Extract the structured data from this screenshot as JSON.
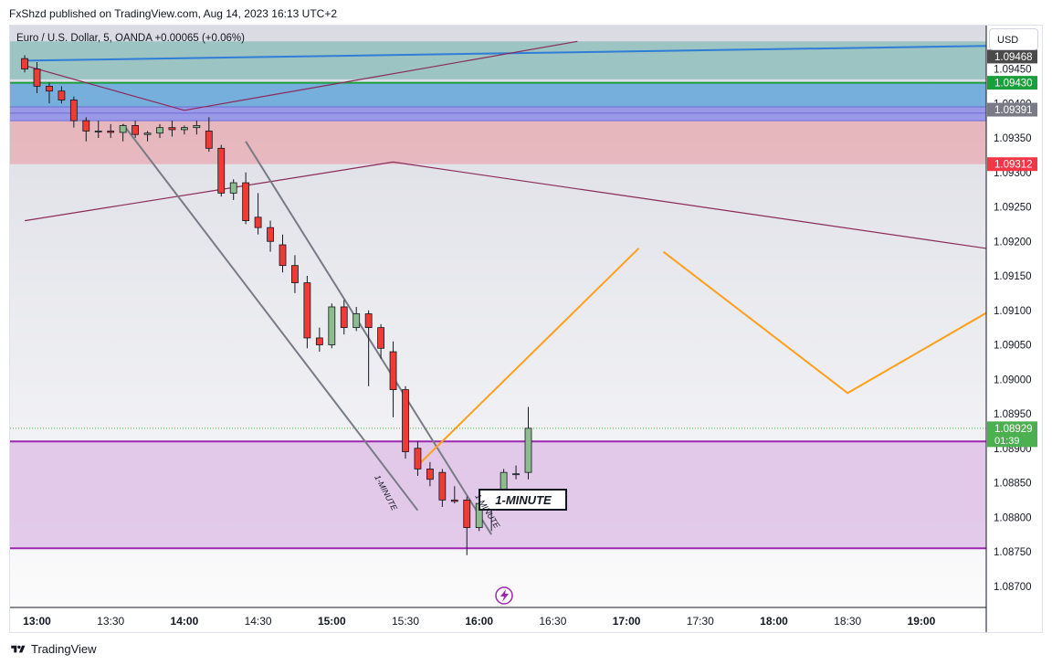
{
  "header": {
    "published_line": "FxShzd published on TradingView.com, Aug 14, 2023 16:13 UTC+2",
    "symbol_line": "Euro / U.S. Dollar, 5, OANDA  +0.00065 (+0.06%)",
    "currency_button": "USD"
  },
  "footer": {
    "brand": "TradingView"
  },
  "colors": {
    "up": "#8fbc8f",
    "down": "#ef3b36",
    "wick": "#131722",
    "zone_teal": "#8fbfbd",
    "zone_blue": "#5ba3d9",
    "zone_purple": "#8e8ce8",
    "zone_red": "#e8aab0",
    "zone_magenta": "#e0c4e8",
    "line_blue": "#2f7dd6",
    "line_maroon": "#8b2a5a",
    "line_orange": "#ff9f1a",
    "line_gray": "#787b86",
    "line_green": "#1b9e3c",
    "line_violet": "#9c27b0"
  },
  "chart_data": {
    "type": "candlestick",
    "symbol": "EURUSD",
    "timeframe": "5",
    "x_ticks": [
      "13:00",
      "13:30",
      "14:00",
      "14:30",
      "15:00",
      "15:30",
      "16:00",
      "16:30",
      "17:00",
      "17:30",
      "18:00",
      "18:30",
      "19:00"
    ],
    "x_ticks_bold": [
      "13:00",
      "14:00",
      "15:00",
      "16:00",
      "17:00",
      "18:00",
      "19:00"
    ],
    "y_ticks": [
      "1.09450",
      "1.09400",
      "1.09350",
      "1.09300",
      "1.09250",
      "1.09200",
      "1.09150",
      "1.09100",
      "1.09050",
      "1.09000",
      "1.08950",
      "1.08900",
      "1.08850",
      "1.08800",
      "1.08750",
      "1.08700"
    ],
    "ylim": [
      1.0865,
      1.0949
    ],
    "candles": [
      {
        "t": "12:55",
        "o": 1.09465,
        "h": 1.0947,
        "l": 1.09445,
        "c": 1.0945
      },
      {
        "t": "13:00",
        "o": 1.0945,
        "h": 1.0946,
        "l": 1.09415,
        "c": 1.09425
      },
      {
        "t": "13:05",
        "o": 1.09425,
        "h": 1.0943,
        "l": 1.094,
        "c": 1.09418
      },
      {
        "t": "13:10",
        "o": 1.09418,
        "h": 1.09425,
        "l": 1.094,
        "c": 1.09405
      },
      {
        "t": "13:15",
        "o": 1.09405,
        "h": 1.0941,
        "l": 1.09365,
        "c": 1.09375
      },
      {
        "t": "13:20",
        "o": 1.09375,
        "h": 1.0938,
        "l": 1.09345,
        "c": 1.0936
      },
      {
        "t": "13:25",
        "o": 1.0936,
        "h": 1.09375,
        "l": 1.0935,
        "c": 1.0936
      },
      {
        "t": "13:30",
        "o": 1.0936,
        "h": 1.0937,
        "l": 1.0935,
        "c": 1.09358
      },
      {
        "t": "13:35",
        "o": 1.09358,
        "h": 1.0937,
        "l": 1.09345,
        "c": 1.09368
      },
      {
        "t": "13:40",
        "o": 1.09368,
        "h": 1.09375,
        "l": 1.0935,
        "c": 1.09355
      },
      {
        "t": "13:45",
        "o": 1.09355,
        "h": 1.0936,
        "l": 1.09345,
        "c": 1.09357
      },
      {
        "t": "13:50",
        "o": 1.09357,
        "h": 1.0937,
        "l": 1.0935,
        "c": 1.09365
      },
      {
        "t": "13:55",
        "o": 1.09365,
        "h": 1.09375,
        "l": 1.09352,
        "c": 1.09362
      },
      {
        "t": "14:00",
        "o": 1.09362,
        "h": 1.09368,
        "l": 1.09355,
        "c": 1.09365
      },
      {
        "t": "14:05",
        "o": 1.09365,
        "h": 1.09375,
        "l": 1.09355,
        "c": 1.09368
      },
      {
        "t": "14:10",
        "o": 1.0936,
        "h": 1.0938,
        "l": 1.0933,
        "c": 1.09335
      },
      {
        "t": "14:15",
        "o": 1.09335,
        "h": 1.0934,
        "l": 1.09265,
        "c": 1.0927
      },
      {
        "t": "14:20",
        "o": 1.0927,
        "h": 1.0929,
        "l": 1.0926,
        "c": 1.09285
      },
      {
        "t": "14:25",
        "o": 1.09285,
        "h": 1.093,
        "l": 1.09225,
        "c": 1.0923
      },
      {
        "t": "14:30",
        "o": 1.09235,
        "h": 1.0927,
        "l": 1.0921,
        "c": 1.0922
      },
      {
        "t": "14:35",
        "o": 1.0922,
        "h": 1.0923,
        "l": 1.09185,
        "c": 1.092
      },
      {
        "t": "14:40",
        "o": 1.09195,
        "h": 1.0921,
        "l": 1.09155,
        "c": 1.09165
      },
      {
        "t": "14:45",
        "o": 1.09165,
        "h": 1.0918,
        "l": 1.09125,
        "c": 1.0914
      },
      {
        "t": "14:50",
        "o": 1.0914,
        "h": 1.0915,
        "l": 1.09045,
        "c": 1.0906
      },
      {
        "t": "14:55",
        "o": 1.0906,
        "h": 1.09075,
        "l": 1.0904,
        "c": 1.0905
      },
      {
        "t": "15:00",
        "o": 1.0905,
        "h": 1.0911,
        "l": 1.09045,
        "c": 1.09105
      },
      {
        "t": "15:05",
        "o": 1.09105,
        "h": 1.09115,
        "l": 1.09065,
        "c": 1.09075
      },
      {
        "t": "15:10",
        "o": 1.09075,
        "h": 1.09105,
        "l": 1.0907,
        "c": 1.09095
      },
      {
        "t": "15:15",
        "o": 1.09095,
        "h": 1.091,
        "l": 1.0899,
        "c": 1.09075
      },
      {
        "t": "15:20",
        "o": 1.09075,
        "h": 1.0908,
        "l": 1.0903,
        "c": 1.09045
      },
      {
        "t": "15:25",
        "o": 1.0904,
        "h": 1.09055,
        "l": 1.08945,
        "c": 1.08985
      },
      {
        "t": "15:30",
        "o": 1.08985,
        "h": 1.0899,
        "l": 1.08885,
        "c": 1.08895
      },
      {
        "t": "15:35",
        "o": 1.089,
        "h": 1.0891,
        "l": 1.0886,
        "c": 1.0887
      },
      {
        "t": "15:40",
        "o": 1.0887,
        "h": 1.0888,
        "l": 1.08845,
        "c": 1.08855
      },
      {
        "t": "15:45",
        "o": 1.08865,
        "h": 1.0887,
        "l": 1.08815,
        "c": 1.08825
      },
      {
        "t": "15:50",
        "o": 1.08825,
        "h": 1.08845,
        "l": 1.0882,
        "c": 1.08823
      },
      {
        "t": "15:55",
        "o": 1.08825,
        "h": 1.0883,
        "l": 1.08745,
        "c": 1.08785
      },
      {
        "t": "16:00",
        "o": 1.08785,
        "h": 1.0884,
        "l": 1.0878,
        "c": 1.0882
      },
      {
        "t": "16:05",
        "o": 1.0882,
        "h": 1.08825,
        "l": 1.0878,
        "c": 1.08822
      },
      {
        "t": "16:10",
        "o": 1.08825,
        "h": 1.0887,
        "l": 1.0882,
        "c": 1.08865
      },
      {
        "t": "16:15",
        "o": 1.08862,
        "h": 1.08875,
        "l": 1.08855,
        "c": 1.08863
      },
      {
        "t": "16:20",
        "o": 1.08865,
        "h": 1.0896,
        "l": 1.08855,
        "c": 1.08929
      }
    ],
    "zones": [
      {
        "name": "teal",
        "y1": 1.0949,
        "y2": 1.09435
      },
      {
        "name": "blue",
        "y1": 1.0943,
        "y2": 1.09395
      },
      {
        "name": "purple",
        "y1": 1.09395,
        "y2": 1.09375
      },
      {
        "name": "red",
        "y1": 1.09375,
        "y2": 1.09312
      },
      {
        "name": "magenta",
        "y1": 1.0891,
        "y2": 1.08755
      }
    ],
    "horizontal_lines": [
      {
        "price": 1.0943,
        "color": "green"
      },
      {
        "price": 1.0891,
        "color": "violet"
      },
      {
        "price": 1.08755,
        "color": "violet"
      }
    ],
    "trend_lines": [
      {
        "color": "blue",
        "points": [
          [
            "12:55",
            1.09462
          ],
          [
            "19:55",
            1.09485
          ]
        ]
      },
      {
        "color": "maroon",
        "points": [
          [
            "12:55",
            1.09455
          ],
          [
            "14:00",
            1.0939
          ],
          [
            "16:40",
            1.0949
          ]
        ]
      },
      {
        "color": "maroon",
        "points": [
          [
            "12:55",
            1.0923
          ],
          [
            "15:25",
            1.09315
          ],
          [
            "19:55",
            1.09175
          ]
        ]
      },
      {
        "color": "gray",
        "points": [
          [
            "13:35",
            1.0937
          ],
          [
            "15:35",
            1.0881
          ]
        ]
      },
      {
        "color": "gray",
        "points": [
          [
            "14:25",
            1.09345
          ],
          [
            "16:05",
            1.08775
          ]
        ]
      },
      {
        "color": "orange",
        "points": [
          [
            "15:35",
            1.08875
          ],
          [
            "17:05",
            1.0919
          ]
        ]
      },
      {
        "color": "orange",
        "points": [
          [
            "17:15",
            1.09185
          ],
          [
            "18:30",
            1.0898
          ],
          [
            "19:55",
            1.09155
          ]
        ]
      }
    ],
    "annotations": [
      {
        "text": "1-MINUTE",
        "style": "boxed"
      },
      {
        "text": "1-MINUTE",
        "style": "rotated"
      },
      {
        "text": "1-MINUTE",
        "style": "rotated"
      }
    ],
    "price_labels": [
      {
        "text": "1.09468",
        "price": 1.09468,
        "style": "dark"
      },
      {
        "text": "1.09430",
        "price": 1.0943,
        "style": "green"
      },
      {
        "text": "1.09391",
        "price": 1.09391,
        "style": "gray"
      },
      {
        "text": "1.09312",
        "price": 1.09312,
        "style": "red"
      },
      {
        "text": "1.08929",
        "price": 1.08929,
        "style": "current",
        "sub": "01:39"
      }
    ]
  }
}
